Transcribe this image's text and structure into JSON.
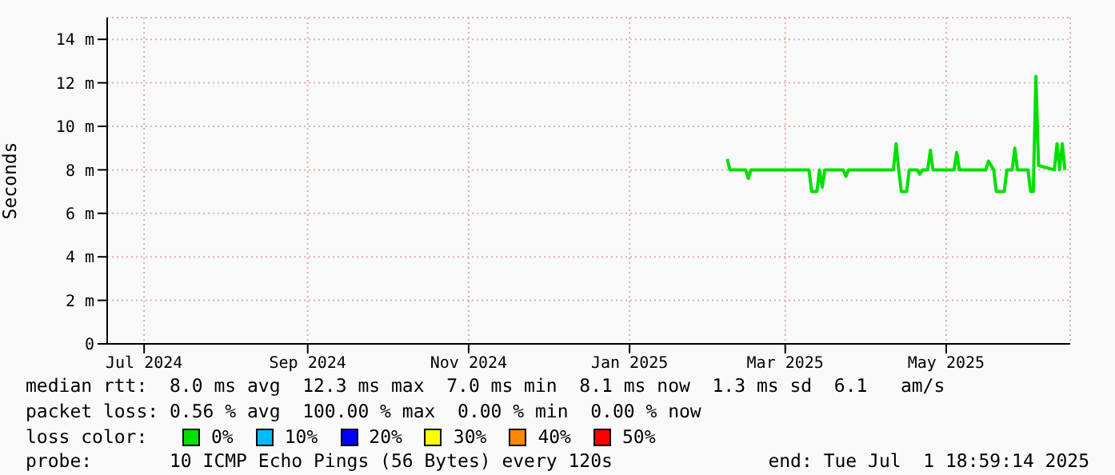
{
  "chart_data": {
    "type": "line",
    "ylabel": "Seconds",
    "legend_title": "loss color:",
    "legend": "bottom",
    "grid": true,
    "marker": "none",
    "xlim": [
      "2024-07-01",
      "2025-07-01"
    ],
    "xticks": [
      {
        "value": "2024-07-15",
        "label": "Jul 2024"
      },
      {
        "value": "2024-09-15",
        "label": "Sep 2024"
      },
      {
        "value": "2024-11-15",
        "label": "Nov 2024"
      },
      {
        "value": "2025-01-15",
        "label": "Jan 2025"
      },
      {
        "value": "2025-03-15",
        "label": "Mar 2025"
      },
      {
        "value": "2025-05-15",
        "label": "May 2025"
      }
    ],
    "ylim": [
      0,
      15
    ],
    "yticks": [
      0,
      {
        "value": 2,
        "label": "2 m"
      },
      {
        "value": 4,
        "label": "4 m"
      },
      {
        "value": 6,
        "label": "6 m"
      },
      {
        "value": 8,
        "label": "8 m"
      },
      {
        "value": 10,
        "label": "10 m"
      },
      {
        "value": 12,
        "label": "12 m"
      },
      {
        "value": 14,
        "label": "14 m"
      }
    ],
    "series": [
      {
        "name": "0%",
        "color": "#00e000",
        "x": [
          "2025-02-21",
          "2025-02-22",
          "2025-02-28",
          "2025-03-01",
          "2025-03-02",
          "2025-03-24",
          "2025-03-25",
          "2025-03-27",
          "2025-03-28",
          "2025-03-29",
          "2025-03-30",
          "2025-04-06",
          "2025-04-07",
          "2025-04-08",
          "2025-04-25",
          "2025-04-26",
          "2025-04-27",
          "2025-04-28",
          "2025-04-30",
          "2025-05-01",
          "2025-05-04",
          "2025-05-05",
          "2025-05-06",
          "2025-05-08",
          "2025-05-09",
          "2025-05-10",
          "2025-05-18",
          "2025-05-19",
          "2025-05-20",
          "2025-05-30",
          "2025-05-31",
          "2025-06-02",
          "2025-06-03",
          "2025-06-06",
          "2025-06-07",
          "2025-06-09",
          "2025-06-10",
          "2025-06-11",
          "2025-06-15",
          "2025-06-16",
          "2025-06-17",
          "2025-06-18",
          "2025-06-19",
          "2025-06-25",
          "2025-06-26",
          "2025-06-27",
          "2025-06-28",
          "2025-06-29"
        ],
        "values": [
          8.5,
          8.0,
          8.0,
          7.6,
          8.0,
          8.0,
          7.0,
          7.0,
          8.0,
          7.2,
          8.0,
          8.0,
          7.7,
          8.0,
          8.0,
          9.2,
          8.0,
          7.0,
          7.0,
          8.0,
          8.0,
          7.8,
          8.0,
          8.0,
          8.9,
          8.0,
          8.0,
          8.8,
          8.0,
          8.0,
          8.4,
          8.0,
          7.0,
          7.0,
          8.0,
          8.0,
          9.0,
          8.0,
          8.0,
          7.0,
          7.0,
          12.3,
          8.2,
          8.0,
          9.2,
          8.0,
          9.2,
          8.0
        ]
      },
      {
        "name": "10%",
        "color": "#00bbff"
      },
      {
        "name": "20%",
        "color": "#0000ff"
      },
      {
        "name": "30%",
        "color": "#ffff00"
      },
      {
        "name": "40%",
        "color": "#ff8800"
      },
      {
        "name": "50%",
        "color": "#ff0000"
      }
    ],
    "annotations": [
      "median rtt:  8.0 ms avg  12.3 ms max  7.0 ms min  8.1 ms now  1.3 ms sd  6.1   am/s",
      "packet loss: 0.56 % avg  100.00 % max  0.00 % min  0.00 % now",
      "probe:       10 ICMP Echo Pings (56 Bytes) every 120s",
      "end: Tue Jul  1 18:59:14 2025"
    ]
  }
}
